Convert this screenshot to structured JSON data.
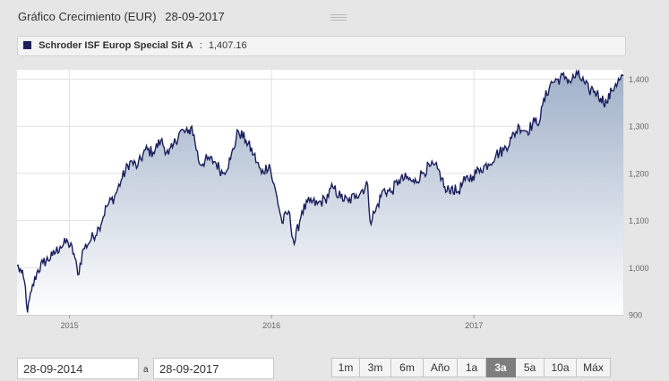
{
  "header": {
    "title": "Gráfico Crecimiento (EUR)",
    "date": "28-09-2017"
  },
  "legend": {
    "series_name": "Schroder ISF Europ Special Sit A",
    "separator": ":",
    "last_value": "1,407.16",
    "color": "#1a1f5c"
  },
  "chart_data": {
    "type": "area",
    "series": [
      {
        "name": "Schroder ISF Europ Special Sit A",
        "points": [
          [
            "2014-09-28",
            1005
          ],
          [
            "2014-10-06",
            990
          ],
          [
            "2014-10-13",
            960
          ],
          [
            "2014-10-17",
            905
          ],
          [
            "2014-10-24",
            950
          ],
          [
            "2014-11-03",
            990
          ],
          [
            "2014-11-14",
            1010
          ],
          [
            "2014-12-01",
            1025
          ],
          [
            "2014-12-15",
            1045
          ],
          [
            "2014-12-29",
            1055
          ],
          [
            "2015-01-09",
            1030
          ],
          [
            "2015-01-16",
            985
          ],
          [
            "2015-01-26",
            1040
          ],
          [
            "2015-02-09",
            1060
          ],
          [
            "2015-02-23",
            1085
          ],
          [
            "2015-03-09",
            1130
          ],
          [
            "2015-03-23",
            1150
          ],
          [
            "2015-04-06",
            1190
          ],
          [
            "2015-04-20",
            1225
          ],
          [
            "2015-05-04",
            1215
          ],
          [
            "2015-05-18",
            1250
          ],
          [
            "2015-06-01",
            1245
          ],
          [
            "2015-06-15",
            1270
          ],
          [
            "2015-06-29",
            1240
          ],
          [
            "2015-07-06",
            1255
          ],
          [
            "2015-07-20",
            1290
          ],
          [
            "2015-08-03",
            1285
          ],
          [
            "2015-08-10",
            1300
          ],
          [
            "2015-08-24",
            1220
          ],
          [
            "2015-09-07",
            1230
          ],
          [
            "2015-09-21",
            1225
          ],
          [
            "2015-10-05",
            1200
          ],
          [
            "2015-10-19",
            1230
          ],
          [
            "2015-11-02",
            1290
          ],
          [
            "2015-11-16",
            1270
          ],
          [
            "2015-11-30",
            1240
          ],
          [
            "2015-12-14",
            1200
          ],
          [
            "2015-12-28",
            1220
          ],
          [
            "2016-01-04",
            1180
          ],
          [
            "2016-01-11",
            1150
          ],
          [
            "2016-01-20",
            1095
          ],
          [
            "2016-02-01",
            1120
          ],
          [
            "2016-02-11",
            1050
          ],
          [
            "2016-02-25",
            1120
          ],
          [
            "2016-03-10",
            1140
          ],
          [
            "2016-03-24",
            1135
          ],
          [
            "2016-04-07",
            1145
          ],
          [
            "2016-04-21",
            1170
          ],
          [
            "2016-05-05",
            1150
          ],
          [
            "2016-05-19",
            1140
          ],
          [
            "2016-06-02",
            1155
          ],
          [
            "2016-06-23",
            1175
          ],
          [
            "2016-06-27",
            1100
          ],
          [
            "2016-07-07",
            1120
          ],
          [
            "2016-07-21",
            1165
          ],
          [
            "2016-08-04",
            1160
          ],
          [
            "2016-08-18",
            1185
          ],
          [
            "2016-09-01",
            1190
          ],
          [
            "2016-09-15",
            1180
          ],
          [
            "2016-09-29",
            1200
          ],
          [
            "2016-10-13",
            1215
          ],
          [
            "2016-10-27",
            1210
          ],
          [
            "2016-11-04",
            1190
          ],
          [
            "2016-11-11",
            1160
          ],
          [
            "2016-11-21",
            1170
          ],
          [
            "2016-12-02",
            1160
          ],
          [
            "2016-12-16",
            1185
          ],
          [
            "2016-12-30",
            1195
          ],
          [
            "2017-01-13",
            1210
          ],
          [
            "2017-01-27",
            1220
          ],
          [
            "2017-02-10",
            1240
          ],
          [
            "2017-02-24",
            1250
          ],
          [
            "2017-03-10",
            1275
          ],
          [
            "2017-03-24",
            1300
          ],
          [
            "2017-04-07",
            1290
          ],
          [
            "2017-04-21",
            1310
          ],
          [
            "2017-05-01",
            1315
          ],
          [
            "2017-05-05",
            1345
          ],
          [
            "2017-05-19",
            1390
          ],
          [
            "2017-06-02",
            1400
          ],
          [
            "2017-06-16",
            1405
          ],
          [
            "2017-06-23",
            1395
          ],
          [
            "2017-07-07",
            1410
          ],
          [
            "2017-07-21",
            1390
          ],
          [
            "2017-07-28",
            1375
          ],
          [
            "2017-08-04",
            1380
          ],
          [
            "2017-08-11",
            1370
          ],
          [
            "2017-08-18",
            1360
          ],
          [
            "2017-08-29",
            1350
          ],
          [
            "2017-09-07",
            1375
          ],
          [
            "2017-09-14",
            1390
          ],
          [
            "2017-09-21",
            1398
          ],
          [
            "2017-09-28",
            1407
          ]
        ]
      }
    ],
    "x_ticks": [
      {
        "date": "2015-01-01",
        "label": "2015"
      },
      {
        "date": "2016-01-01",
        "label": "2016"
      },
      {
        "date": "2017-01-01",
        "label": "2017"
      }
    ],
    "y_ticks": [
      {
        "value": 900,
        "label": "900"
      },
      {
        "value": 1000,
        "label": "1,000"
      },
      {
        "value": 1100,
        "label": "1,100"
      },
      {
        "value": 1200,
        "label": "1,200"
      },
      {
        "value": 1300,
        "label": "1,300"
      },
      {
        "value": 1400,
        "label": "1,400"
      }
    ],
    "xlim": [
      "2014-09-28",
      "2017-09-28"
    ],
    "ylim": [
      900,
      1420
    ],
    "grid": true,
    "line_color": "#1a1f5c",
    "fill_top_color": "#9fb0c8",
    "fill_bottom_color": "#ffffff"
  },
  "footer": {
    "date_from": "28-09-2014",
    "range_separator": "a",
    "date_to": "28-09-2017",
    "range_buttons": [
      {
        "label": "1m",
        "active": false
      },
      {
        "label": "3m",
        "active": false
      },
      {
        "label": "6m",
        "active": false
      },
      {
        "label": "Año",
        "active": false
      },
      {
        "label": "1a",
        "active": false
      },
      {
        "label": "3a",
        "active": true
      },
      {
        "label": "5a",
        "active": false
      },
      {
        "label": "10a",
        "active": false
      },
      {
        "label": "Máx",
        "active": false
      }
    ]
  }
}
